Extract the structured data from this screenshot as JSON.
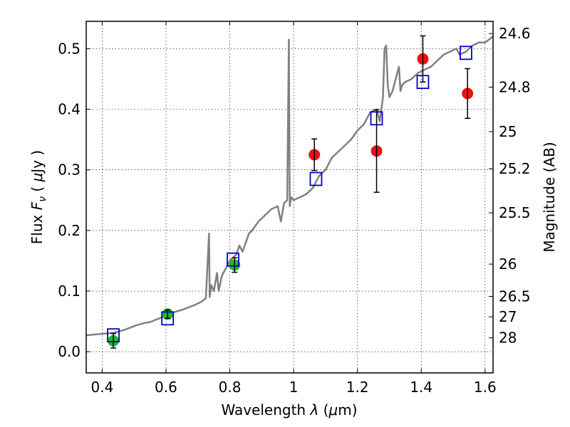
{
  "chart_data": {
    "type": "scatter",
    "title": "",
    "xlabel_prefix": "Wavelength  ",
    "xlabel_symbol": "λ",
    "xlabel_unit_open": " (",
    "xlabel_unit_mu": "μ",
    "xlabel_unit_rest": "m)",
    "ylabel_prefix": "Flux  ",
    "ylabel_symbol": "F",
    "ylabel_subscript": "ν",
    "ylabel_unit_open": "  ( ",
    "ylabel_unit_mu": "μ",
    "ylabel_unit_rest": "Jy )",
    "y2label": "Magnitude (AB)",
    "xlim": [
      0.35,
      1.625
    ],
    "ylim": [
      -0.035,
      0.545
    ],
    "grid": true,
    "x_ticks": [
      0.4,
      0.6,
      0.8,
      1.0,
      1.2,
      1.4,
      1.6
    ],
    "x_tick_labels": [
      "0.4",
      "0.6",
      "0.8",
      "1",
      "1.2",
      "1.4",
      "1.6"
    ],
    "y_ticks": [
      0.0,
      0.1,
      0.2,
      0.3,
      0.4,
      0.5
    ],
    "y_tick_labels": [
      "0.0",
      "0.1",
      "0.2",
      "0.3",
      "0.4",
      "0.5"
    ],
    "y2_ticks": [
      {
        "label": "24.6",
        "flux": 0.5248
      },
      {
        "label": "24.8",
        "flux": 0.4365
      },
      {
        "label": "25",
        "flux": 0.3631
      },
      {
        "label": "25.2",
        "flux": 0.302
      },
      {
        "label": "25.5",
        "flux": 0.2291
      },
      {
        "label": "26",
        "flux": 0.1445
      },
      {
        "label": "26.5",
        "flux": 0.0912
      },
      {
        "label": "27",
        "flux": 0.0575
      },
      {
        "label": "28",
        "flux": 0.0229
      }
    ],
    "colors": {
      "model": "#808080",
      "box": "#0000cc",
      "green": "#22bb22",
      "red": "#ee1111",
      "error": "#000000"
    },
    "series": [
      {
        "name": "model-spectrum",
        "kind": "line",
        "x": [
          0.35,
          0.37,
          0.39,
          0.41,
          0.43,
          0.45,
          0.47,
          0.49,
          0.51,
          0.53,
          0.55,
          0.57,
          0.59,
          0.61,
          0.63,
          0.65,
          0.67,
          0.69,
          0.71,
          0.725,
          0.735,
          0.737,
          0.742,
          0.75,
          0.76,
          0.765,
          0.775,
          0.79,
          0.8,
          0.81,
          0.82,
          0.83,
          0.84,
          0.85,
          0.86,
          0.87,
          0.89,
          0.91,
          0.93,
          0.95,
          0.96,
          0.97,
          0.98,
          0.985,
          0.988,
          0.992,
          1.0,
          1.02,
          1.04,
          1.06,
          1.08,
          1.1,
          1.12,
          1.14,
          1.16,
          1.18,
          1.2,
          1.22,
          1.24,
          1.26,
          1.27,
          1.28,
          1.285,
          1.29,
          1.295,
          1.3,
          1.31,
          1.32,
          1.33,
          1.335,
          1.34,
          1.35,
          1.37,
          1.39,
          1.41,
          1.43,
          1.45,
          1.47,
          1.49,
          1.51,
          1.52,
          1.54,
          1.56,
          1.58,
          1.6,
          1.625
        ],
        "y": [
          0.027,
          0.028,
          0.029,
          0.03,
          0.031,
          0.033,
          0.036,
          0.04,
          0.044,
          0.047,
          0.049,
          0.053,
          0.057,
          0.062,
          0.066,
          0.069,
          0.073,
          0.077,
          0.082,
          0.088,
          0.195,
          0.09,
          0.11,
          0.1,
          0.13,
          0.1,
          0.125,
          0.14,
          0.15,
          0.155,
          0.16,
          0.175,
          0.165,
          0.18,
          0.195,
          0.2,
          0.215,
          0.225,
          0.235,
          0.24,
          0.215,
          0.245,
          0.25,
          0.515,
          0.24,
          0.255,
          0.25,
          0.255,
          0.26,
          0.27,
          0.29,
          0.3,
          0.32,
          0.33,
          0.34,
          0.35,
          0.365,
          0.375,
          0.395,
          0.4,
          0.38,
          0.42,
          0.5,
          0.505,
          0.44,
          0.42,
          0.43,
          0.45,
          0.47,
          0.43,
          0.44,
          0.445,
          0.45,
          0.46,
          0.465,
          0.47,
          0.48,
          0.49,
          0.495,
          0.5,
          0.49,
          0.495,
          0.505,
          0.51,
          0.51,
          0.52
        ]
      },
      {
        "name": "model-synthetic-photometry",
        "kind": "square",
        "x": [
          0.435,
          0.605,
          0.81,
          1.07,
          1.26,
          1.405,
          1.54
        ],
        "y": [
          0.027,
          0.055,
          0.152,
          0.285,
          0.385,
          0.445,
          0.493
        ]
      },
      {
        "name": "optical-photometry",
        "kind": "circle",
        "color": "green",
        "x": [
          0.435,
          0.605,
          0.815
        ],
        "y": [
          0.018,
          0.062,
          0.143
        ],
        "yerr": [
          0.012,
          0.007,
          0.012
        ]
      },
      {
        "name": "nir-photometry",
        "kind": "circle",
        "color": "red",
        "x": [
          1.065,
          1.26,
          1.405,
          1.545
        ],
        "y": [
          0.325,
          0.331,
          0.483,
          0.426
        ],
        "yerr": [
          0.026,
          0.068,
          0.038,
          0.041
        ]
      }
    ]
  }
}
